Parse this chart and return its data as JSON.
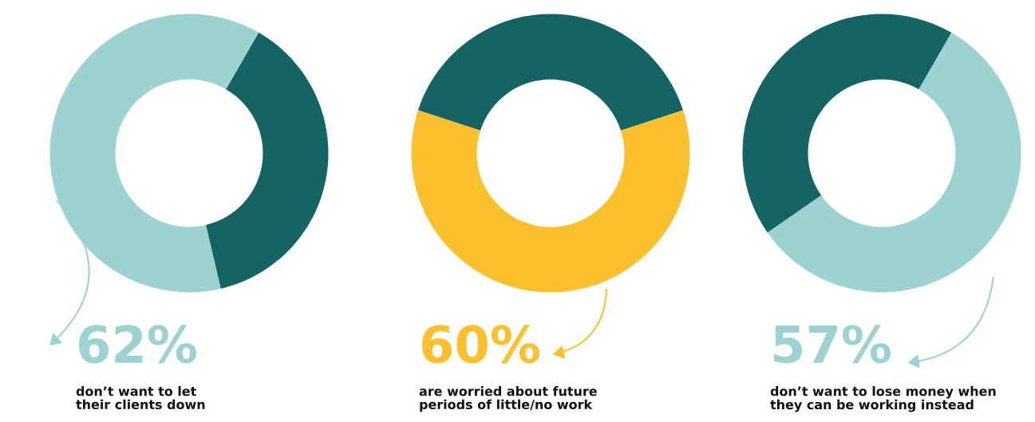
{
  "chart_data": [
    {
      "type": "donut",
      "categories": [
        null,
        null
      ],
      "values": [
        62,
        38
      ],
      "colors": [
        "#9dd2d3",
        "#156464"
      ],
      "value_labels": [
        "62%",
        null
      ],
      "annotations": [
        "don’t want to let their clients down"
      ]
    },
    {
      "type": "donut",
      "categories": [
        null,
        null
      ],
      "values": [
        60,
        40
      ],
      "colors": [
        "#fbc02d",
        "#156464"
      ],
      "value_labels": [
        "60%",
        null
      ],
      "annotations": [
        "are worried about future periods of little/no work"
      ]
    },
    {
      "type": "donut",
      "categories": [
        null,
        null
      ],
      "values": [
        57,
        43
      ],
      "colors": [
        "#9dd2d3",
        "#156464"
      ],
      "value_labels": [
        "57%",
        null
      ],
      "annotations": [
        "don’t want to lose money when they can be working instead"
      ]
    }
  ]
}
